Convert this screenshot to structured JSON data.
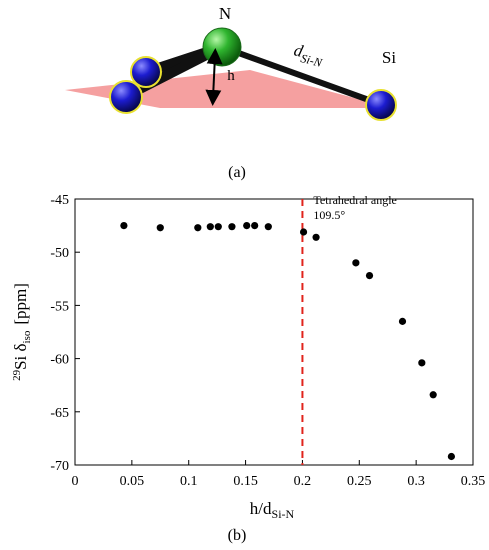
{
  "panel_a": {
    "caption": "(a)",
    "atom_n_label": "N",
    "atom_si_label": "Si",
    "height_label": "h",
    "distance_label": "d",
    "distance_subscript": "Si-N",
    "colors": {
      "nitrogen": "#1fa01f",
      "silicon": "#1a1acc",
      "plane": "#f28080",
      "bond": "#111111",
      "halo": "#e8e030"
    }
  },
  "panel_b": {
    "caption": "(b)"
  },
  "chart_data": {
    "type": "scatter",
    "xlabel_main": "h/d",
    "xlabel_sub": "Si-N",
    "ylabel_sup": "29",
    "ylabel_main": "Si δ",
    "ylabel_sub": "iso",
    "ylabel_unit": "[ppm]",
    "xlim": [
      0,
      0.35
    ],
    "ylim": [
      -70,
      -45
    ],
    "xticks": [
      "0",
      "0.05",
      "0.1",
      "0.15",
      "0.2",
      "0.25",
      "0.3",
      "0.35"
    ],
    "yticks": [
      "-45",
      "-50",
      "-55",
      "-60",
      "-65",
      "-70"
    ],
    "reference_line": {
      "x": 0.2,
      "label_line1": "Tetrahedral angle",
      "label_line2": "109.5°",
      "color": "#e0241c",
      "style": "dashed"
    },
    "points": [
      {
        "x": 0.043,
        "y": -47.5
      },
      {
        "x": 0.075,
        "y": -47.7
      },
      {
        "x": 0.108,
        "y": -47.7
      },
      {
        "x": 0.119,
        "y": -47.6
      },
      {
        "x": 0.126,
        "y": -47.6
      },
      {
        "x": 0.138,
        "y": -47.6
      },
      {
        "x": 0.151,
        "y": -47.5
      },
      {
        "x": 0.158,
        "y": -47.5
      },
      {
        "x": 0.17,
        "y": -47.6
      },
      {
        "x": 0.201,
        "y": -48.1
      },
      {
        "x": 0.212,
        "y": -48.6
      },
      {
        "x": 0.247,
        "y": -51.0
      },
      {
        "x": 0.259,
        "y": -52.2
      },
      {
        "x": 0.288,
        "y": -56.5
      },
      {
        "x": 0.305,
        "y": -60.4
      },
      {
        "x": 0.315,
        "y": -63.4
      },
      {
        "x": 0.331,
        "y": -69.2
      }
    ],
    "marker_color": "#000000",
    "grid": false
  }
}
